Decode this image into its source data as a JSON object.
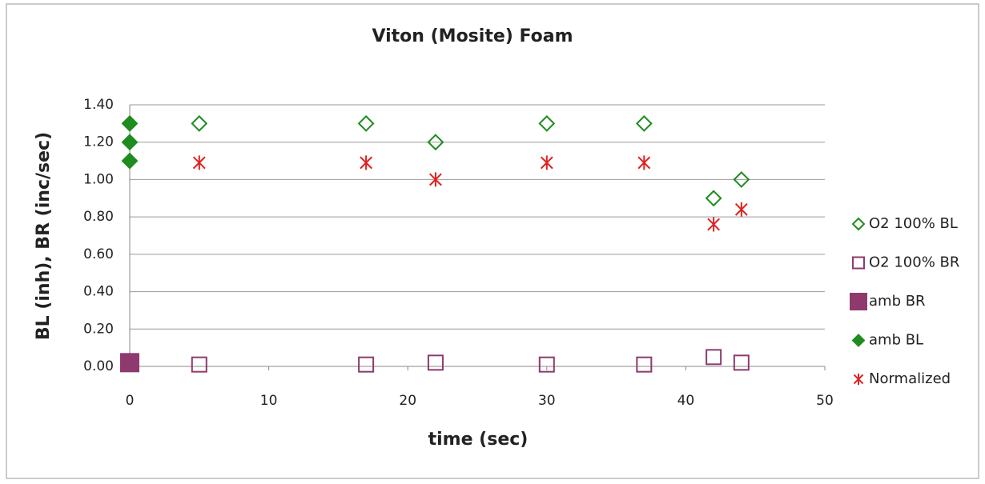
{
  "chart_data": {
    "type": "scatter",
    "title": "Viton (Mosite) Foam",
    "xlabel": "time (sec)",
    "ylabel": "BL (inh),  BR (inc/sec)",
    "xlim": [
      0,
      50
    ],
    "xticks": [
      0,
      10,
      20,
      30,
      40,
      50
    ],
    "ylim": [
      0,
      1.4
    ],
    "yticks": [
      {
        "value": 0,
        "label": "0.00"
      },
      {
        "value": 0.2,
        "label": "0.20"
      },
      {
        "value": 0.4,
        "label": "0.40"
      },
      {
        "value": 0.6,
        "label": "0.60"
      },
      {
        "value": 0.8,
        "label": "0.80"
      },
      {
        "value": 1.0,
        "label": "1.00"
      },
      {
        "value": 1.2,
        "label": "1.20"
      },
      {
        "value": 1.4,
        "label": "1.40"
      }
    ],
    "grid": true,
    "legend": "right",
    "series": [
      {
        "name": "O2 100% BL",
        "color": "#1e8c1e",
        "marker": "diamond",
        "filled": false,
        "x": [
          5,
          17,
          22,
          30,
          37,
          42,
          44
        ],
        "values": [
          1.3,
          1.3,
          1.2,
          1.3,
          1.3,
          0.9,
          1.0
        ]
      },
      {
        "name": "O2 100% BR",
        "color": "#8e3a6e",
        "marker": "square",
        "filled": false,
        "x": [
          5,
          17,
          22,
          30,
          37,
          42,
          44
        ],
        "values": [
          0.01,
          0.01,
          0.02,
          0.01,
          0.01,
          0.05,
          0.02
        ]
      },
      {
        "name": "amb BR",
        "color": "#8e3a6e",
        "marker": "square",
        "filled": true,
        "x": [
          0
        ],
        "values": [
          0.02
        ]
      },
      {
        "name": "amb BL",
        "color": "#1e8c1e",
        "marker": "diamond",
        "filled": true,
        "x": [
          0,
          0,
          0
        ],
        "values": [
          1.3,
          1.2,
          1.1
        ]
      },
      {
        "name": "Normalized",
        "color": "#e02020",
        "marker": "asterisk",
        "filled": false,
        "x": [
          5,
          17,
          22,
          30,
          37,
          42,
          44
        ],
        "values": [
          1.09,
          1.09,
          1.0,
          1.09,
          1.09,
          0.76,
          0.84
        ]
      }
    ]
  }
}
